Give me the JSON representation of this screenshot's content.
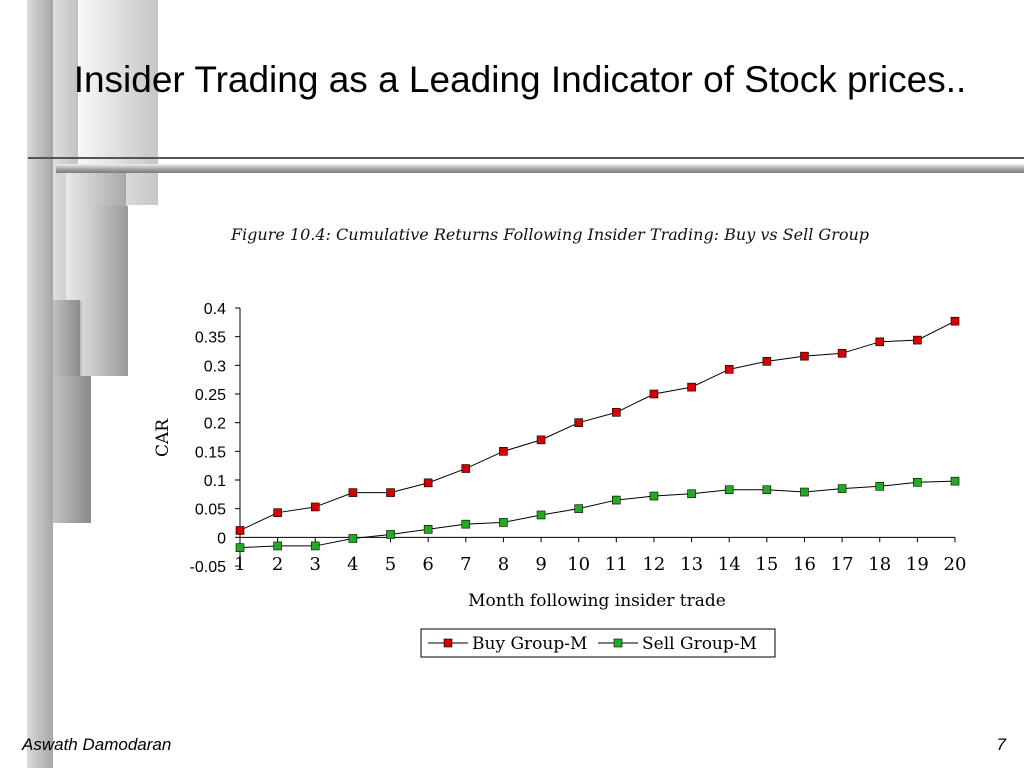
{
  "slide": {
    "title": "Insider Trading as a Leading Indicator of Stock prices..",
    "footer_author": "Aswath Damodaran",
    "page_number": "7"
  },
  "figure": {
    "caption": "Figure 10.4: Cumulative Returns Following Insider Trading: Buy vs Sell Group"
  },
  "colors": {
    "buy_marker": "#d40000",
    "sell_marker": "#22aa22",
    "line": "#000000"
  },
  "chart_data": {
    "type": "line",
    "title": "Figure 10.4: Cumulative Returns Following Insider Trading: Buy vs Sell Group",
    "xlabel": "Month following insider trade",
    "ylabel": "CAR",
    "x": [
      1,
      2,
      3,
      4,
      5,
      6,
      7,
      8,
      9,
      10,
      11,
      12,
      13,
      14,
      15,
      16,
      17,
      18,
      19,
      20
    ],
    "x_tick_labels": [
      "1",
      "2",
      "3",
      "4",
      "5",
      "6",
      "7",
      "8",
      "9",
      "10",
      "11",
      "12",
      "13",
      "14",
      "15",
      "16",
      "17",
      "18",
      "19",
      "20"
    ],
    "y_tick_labels": [
      "0.4",
      "0.35",
      "0.3",
      "0.25",
      "0.2",
      "0.15",
      "0.1",
      "0.05",
      "0",
      "-0.05"
    ],
    "y_ticks": [
      0.4,
      0.35,
      0.3,
      0.25,
      0.2,
      0.15,
      0.1,
      0.05,
      0,
      -0.05
    ],
    "ylim": [
      -0.05,
      0.4
    ],
    "xlim": [
      1,
      20
    ],
    "legend_position": "bottom",
    "series": [
      {
        "name": "Buy Group-M",
        "marker": "square",
        "color": "#d40000",
        "values": [
          0.012,
          0.043,
          0.053,
          0.078,
          0.078,
          0.095,
          0.12,
          0.15,
          0.17,
          0.2,
          0.218,
          0.25,
          0.262,
          0.293,
          0.307,
          0.316,
          0.321,
          0.341,
          0.344,
          0.377
        ]
      },
      {
        "name": "Sell Group-M",
        "marker": "square",
        "color": "#22aa22",
        "values": [
          -0.018,
          -0.015,
          -0.015,
          -0.002,
          0.005,
          0.014,
          0.023,
          0.026,
          0.039,
          0.05,
          0.065,
          0.072,
          0.076,
          0.083,
          0.083,
          0.079,
          0.085,
          0.089,
          0.096,
          0.098
        ]
      }
    ]
  }
}
